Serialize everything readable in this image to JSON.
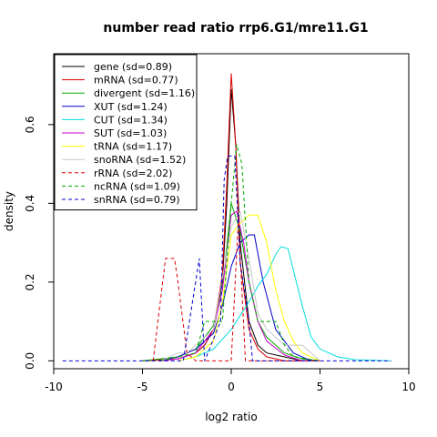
{
  "chart_data": {
    "type": "line",
    "title": "number read ratio rrp6.G1/mre11.G1",
    "xlabel": "log2 ratio",
    "ylabel": "density",
    "xlim": [
      -10,
      10
    ],
    "ylim": [
      -0.02,
      0.78
    ],
    "xticks": [
      -10,
      -5,
      0,
      5,
      10
    ],
    "yticks": [
      0.0,
      0.2,
      0.4,
      0.6
    ],
    "ytick_labels": [
      "0.0",
      "0.2",
      "0.4",
      "0.6"
    ],
    "grid": false,
    "legend_position": "top-left",
    "series": [
      {
        "name": "gene (sd=0.89)",
        "color": "#000000",
        "dash": "solid",
        "points": [
          [
            -5,
            0
          ],
          [
            -3,
            0.005
          ],
          [
            -2,
            0.02
          ],
          [
            -1.5,
            0.04
          ],
          [
            -1,
            0.08
          ],
          [
            -0.5,
            0.2
          ],
          [
            -0.25,
            0.4
          ],
          [
            0,
            0.69
          ],
          [
            0.25,
            0.55
          ],
          [
            0.5,
            0.3
          ],
          [
            1,
            0.1
          ],
          [
            1.5,
            0.04
          ],
          [
            2,
            0.02
          ],
          [
            3,
            0.01
          ],
          [
            4,
            0
          ],
          [
            5,
            0
          ]
        ]
      },
      {
        "name": "mRNA (sd=0.77)",
        "color": "#dd0000",
        "dash": "solid",
        "points": [
          [
            -5,
            0
          ],
          [
            -3,
            0.005
          ],
          [
            -2,
            0.02
          ],
          [
            -1.5,
            0.04
          ],
          [
            -1,
            0.08
          ],
          [
            -0.5,
            0.22
          ],
          [
            -0.25,
            0.45
          ],
          [
            0,
            0.73
          ],
          [
            0.25,
            0.55
          ],
          [
            0.5,
            0.25
          ],
          [
            1,
            0.08
          ],
          [
            1.5,
            0.03
          ],
          [
            2,
            0.01
          ],
          [
            3,
            0
          ],
          [
            5,
            0
          ]
        ]
      },
      {
        "name": "divergent (sd=1.16)",
        "color": "#00aa00",
        "dash": "solid",
        "points": [
          [
            -5,
            0
          ],
          [
            -3,
            0.01
          ],
          [
            -2,
            0.03
          ],
          [
            -1,
            0.09
          ],
          [
            -0.5,
            0.18
          ],
          [
            0,
            0.4
          ],
          [
            0.5,
            0.33
          ],
          [
            1,
            0.2
          ],
          [
            1.5,
            0.1
          ],
          [
            2,
            0.06
          ],
          [
            3,
            0.02
          ],
          [
            4,
            0.005
          ],
          [
            5,
            0
          ]
        ]
      },
      {
        "name": "XUT (sd=1.24)",
        "color": "#0000cc",
        "dash": "solid",
        "points": [
          [
            -4,
            0
          ],
          [
            -3,
            0.01
          ],
          [
            -2,
            0.03
          ],
          [
            -1,
            0.07
          ],
          [
            -0.5,
            0.14
          ],
          [
            0,
            0.24
          ],
          [
            0.5,
            0.3
          ],
          [
            1,
            0.32
          ],
          [
            1.3,
            0.32
          ],
          [
            1.8,
            0.2
          ],
          [
            2.5,
            0.08
          ],
          [
            3.5,
            0.02
          ],
          [
            4.5,
            0
          ],
          [
            5,
            0
          ]
        ]
      },
      {
        "name": "CUT (sd=1.34)",
        "color": "#00dddd",
        "dash": "solid",
        "points": [
          [
            -3,
            0
          ],
          [
            -2,
            0.01
          ],
          [
            -1,
            0.03
          ],
          [
            0,
            0.08
          ],
          [
            1,
            0.15
          ],
          [
            1.5,
            0.19
          ],
          [
            2,
            0.22
          ],
          [
            2.5,
            0.27
          ],
          [
            2.8,
            0.29
          ],
          [
            3.2,
            0.285
          ],
          [
            3.5,
            0.23
          ],
          [
            4,
            0.14
          ],
          [
            4.5,
            0.06
          ],
          [
            5,
            0.03
          ],
          [
            6,
            0.01
          ],
          [
            7,
            0.003
          ],
          [
            9,
            0
          ]
        ]
      },
      {
        "name": "SUT (sd=1.03)",
        "color": "#cc00cc",
        "dash": "solid",
        "points": [
          [
            -4,
            0
          ],
          [
            -3,
            0.005
          ],
          [
            -2,
            0.02
          ],
          [
            -1,
            0.08
          ],
          [
            -0.5,
            0.18
          ],
          [
            0,
            0.37
          ],
          [
            0.3,
            0.38
          ],
          [
            0.7,
            0.3
          ],
          [
            1,
            0.2
          ],
          [
            1.5,
            0.1
          ],
          [
            2,
            0.05
          ],
          [
            3,
            0.015
          ],
          [
            4,
            0
          ],
          [
            5,
            0
          ]
        ]
      },
      {
        "name": "tRNA (sd=1.17)",
        "color": "#ffff00",
        "dash": "solid",
        "points": [
          [
            -3,
            0
          ],
          [
            -2,
            0.01
          ],
          [
            -1,
            0.05
          ],
          [
            -0.5,
            0.15
          ],
          [
            0,
            0.32
          ],
          [
            0.5,
            0.35
          ],
          [
            1,
            0.37
          ],
          [
            1.5,
            0.37
          ],
          [
            2,
            0.3
          ],
          [
            2.5,
            0.18
          ],
          [
            3,
            0.1
          ],
          [
            3.5,
            0.05
          ],
          [
            4,
            0.02
          ],
          [
            5,
            0
          ]
        ]
      },
      {
        "name": "snoRNA (sd=1.52)",
        "color": "#c8c8c8",
        "dash": "solid",
        "points": [
          [
            -4,
            0
          ],
          [
            -3,
            0.02
          ],
          [
            -2.5,
            0.02
          ],
          [
            -2,
            0.04
          ],
          [
            -1,
            0.08
          ],
          [
            0,
            0.34
          ],
          [
            0.5,
            0.38
          ],
          [
            1,
            0.26
          ],
          [
            1.5,
            0.12
          ],
          [
            2,
            0.08
          ],
          [
            3,
            0.04
          ],
          [
            4,
            0.04
          ],
          [
            4.5,
            0.02
          ],
          [
            5,
            0
          ]
        ]
      },
      {
        "name": "rRNA (sd=2.02)",
        "color": "#dd0000",
        "dash": "dashed",
        "points": [
          [
            -4.4,
            0
          ],
          [
            -3.7,
            0.26
          ],
          [
            -3.2,
            0.26
          ],
          [
            -3,
            0.2
          ],
          [
            -2.5,
            0.02
          ],
          [
            -2,
            0
          ],
          [
            0,
            0
          ],
          [
            0.4,
            0.36
          ],
          [
            0.8,
            0
          ],
          [
            5,
            0
          ]
        ]
      },
      {
        "name": "ncRNA (sd=1.09)",
        "color": "#00aa00",
        "dash": "dashed",
        "points": [
          [
            -4,
            0
          ],
          [
            -3,
            0.01
          ],
          [
            -2,
            0.02
          ],
          [
            -1.5,
            0.1
          ],
          [
            -0.5,
            0.1
          ],
          [
            0,
            0.4
          ],
          [
            0.3,
            0.55
          ],
          [
            0.6,
            0.5
          ],
          [
            1,
            0.2
          ],
          [
            1.5,
            0.1
          ],
          [
            2,
            0.1
          ],
          [
            2.5,
            0.1
          ],
          [
            3,
            0.04
          ],
          [
            3.5,
            0.01
          ],
          [
            5,
            0
          ]
        ]
      },
      {
        "name": "snRNA (sd=0.79)",
        "color": "#0000cc",
        "dash": "dashed",
        "points": [
          [
            -9.5,
            0
          ],
          [
            -2.7,
            0
          ],
          [
            -1.8,
            0.26
          ],
          [
            -1.5,
            0
          ],
          [
            -0.6,
            0.1
          ],
          [
            -0.4,
            0.46
          ],
          [
            -0.2,
            0.52
          ],
          [
            0.2,
            0.52
          ],
          [
            0.5,
            0.25
          ],
          [
            1,
            0.1
          ],
          [
            1.2,
            0
          ],
          [
            9,
            0
          ]
        ]
      }
    ]
  }
}
